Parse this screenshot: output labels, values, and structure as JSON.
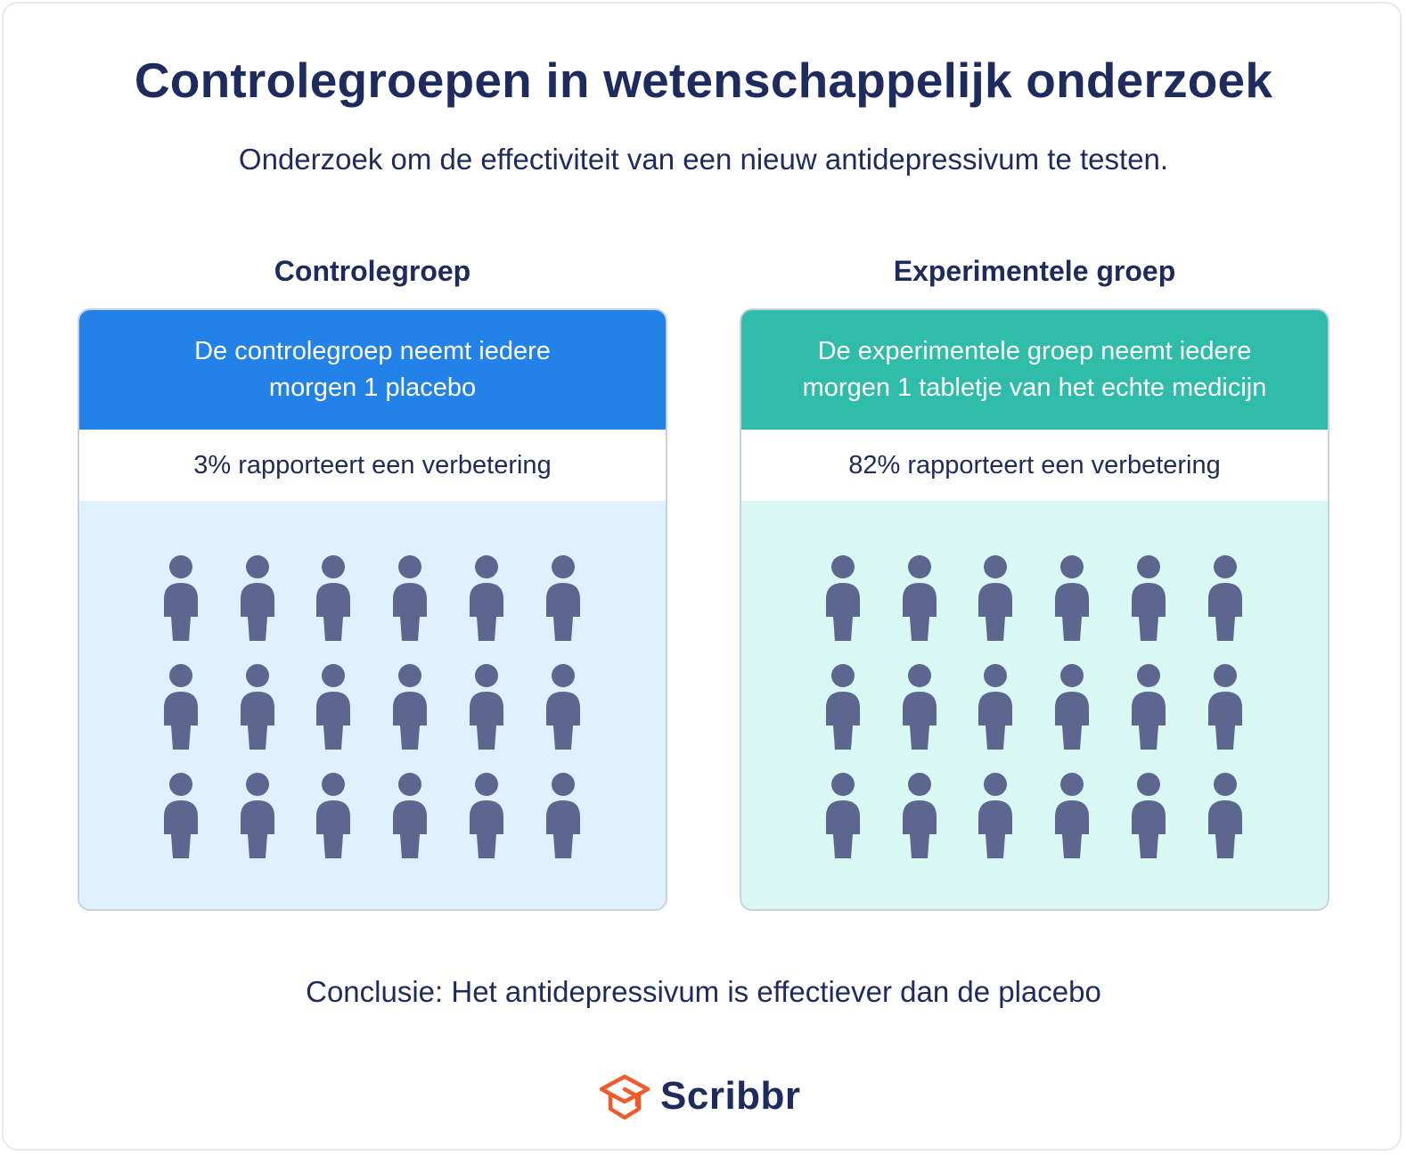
{
  "title": "Controlegroepen in wetenschappelijk onderzoek",
  "subtitle": "Onderzoek om de effectiviteit van een nieuw antidepressivum te testen.",
  "groups": [
    {
      "heading": "Controlegroep",
      "description_line1": "De controlegroep neemt iedere",
      "description_line2": "morgen 1 placebo",
      "result": "3% rapporteert een verbetering",
      "header_color": "#2382e8",
      "body_color": "#dff0ff",
      "person_icon": "person-icon",
      "rows": 3,
      "columns": 6
    },
    {
      "heading": "Experimentele groep",
      "description_line1": "De experimentele groep neemt iedere",
      "description_line2": "morgen 1 tabletje van het echte medicijn",
      "result": "82% rapporteert een verbetering",
      "header_color": "#2fbca9",
      "body_color": "#d9f8f3",
      "person_icon": "person-icon",
      "rows": 3,
      "columns": 6
    }
  ],
  "conclusion": "Conclusie: Het antidepressivum is effectiever dan de placebo",
  "brand": {
    "name": "Scribbr",
    "icon": "graduation-cap-icon",
    "accent_color": "#f15a29"
  },
  "colors": {
    "text": "#1d2b5e",
    "person": "#5d668e"
  }
}
